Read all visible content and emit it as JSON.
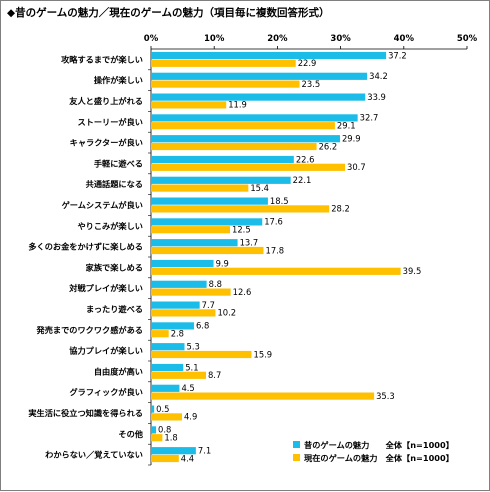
{
  "chart_data": {
    "type": "bar",
    "orientation": "horizontal",
    "title": "◆昔のゲームの魅力／現在のゲームの魅力（項目毎に複数回答形式）",
    "categories": [
      "攻略するまでが楽しい",
      "操作が楽しい",
      "友人と盛り上がれる",
      "ストーリーが良い",
      "キャラクターが良い",
      "手軽に遊べる",
      "共通話題になる",
      "ゲームシステムが良い",
      "やりこみが楽しい",
      "多くのお金をかけずに楽しめる",
      "家族で楽しめる",
      "対戦プレイが楽しい",
      "まったり遊べる",
      "発売までのワクワク感がある",
      "協力プレイが楽しい",
      "自由度が高い",
      "グラフィックが良い",
      "実生活に役立つ知識を得られる",
      "その他",
      "わからない／覚えていない"
    ],
    "series": [
      {
        "name": "昔のゲームの魅力　　全体【n=1000】",
        "color": "#1bbde8",
        "values": [
          37.2,
          34.2,
          33.9,
          32.7,
          29.9,
          22.6,
          22.1,
          18.5,
          17.6,
          13.7,
          9.9,
          8.8,
          7.7,
          6.8,
          5.3,
          5.1,
          4.5,
          0.5,
          0.8,
          7.1
        ]
      },
      {
        "name": "現在のゲームの魅力　全体【n=1000】",
        "color": "#ffc000",
        "values": [
          22.9,
          23.5,
          11.9,
          29.1,
          26.2,
          30.7,
          15.4,
          28.2,
          12.5,
          17.8,
          39.5,
          12.6,
          10.2,
          2.8,
          15.9,
          8.7,
          35.3,
          4.9,
          1.8,
          4.4
        ]
      }
    ],
    "xlim": [
      0,
      50
    ],
    "ticks": [
      0,
      10,
      20,
      30,
      40,
      50
    ],
    "tick_labels": [
      "0%",
      "10%",
      "20%",
      "30%",
      "40%",
      "50%"
    ],
    "xlabel": "",
    "ylabel": "",
    "grid": false,
    "legend_position": "bottom-right"
  }
}
